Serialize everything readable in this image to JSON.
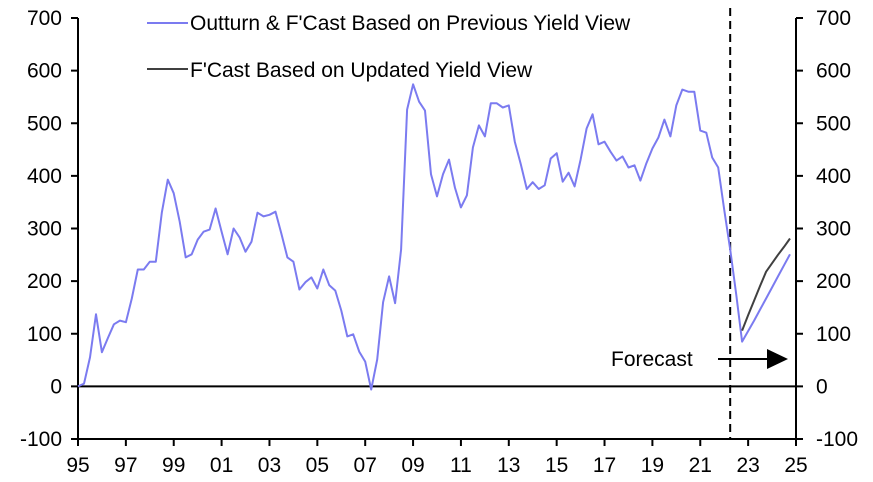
{
  "chart_data": {
    "type": "line",
    "title": "",
    "xlabel": "",
    "ylabel": "",
    "ylim": [
      -100,
      700
    ],
    "xlim": [
      1995,
      2025
    ],
    "y_ticks": [
      -100,
      0,
      100,
      200,
      300,
      400,
      500,
      600,
      700
    ],
    "y_tick_labels": [
      "-100",
      "0",
      "100",
      "200",
      "300",
      "400",
      "500",
      "600",
      "700"
    ],
    "x_ticks": [
      1995,
      1997,
      1999,
      2001,
      2003,
      2005,
      2007,
      2009,
      2011,
      2013,
      2015,
      2017,
      2019,
      2021,
      2023,
      2025
    ],
    "x_tick_labels": [
      "95",
      "97",
      "99",
      "01",
      "03",
      "05",
      "07",
      "09",
      "11",
      "13",
      "15",
      "17",
      "19",
      "21",
      "23",
      "25"
    ],
    "grid": false,
    "legend_placement": "top-left",
    "forecast_start": 2022.25,
    "annotation": "Forecast",
    "series": [
      {
        "name": "Outturn & F'Cast Based on Previous Yield View",
        "color": "#7b7bf0",
        "x_start": 1995.0,
        "x_step": 0.25,
        "values": [
          0,
          5,
          55,
          137,
          65,
          92,
          118,
          125,
          122,
          167,
          222,
          222,
          237,
          237,
          330,
          393,
          367,
          313,
          245,
          251,
          279,
          294,
          298,
          338,
          294,
          251,
          300,
          283,
          256,
          275,
          330,
          323,
          326,
          332,
          290,
          245,
          237,
          184,
          198,
          207,
          186,
          222,
          192,
          182,
          144,
          95,
          99,
          66,
          47,
          -6,
          51,
          160,
          209,
          158,
          260,
          526,
          574,
          541,
          524,
          403,
          361,
          403,
          431,
          378,
          340,
          363,
          454,
          496,
          475,
          538,
          538,
          530,
          534,
          465,
          422,
          375,
          388,
          375,
          382,
          433,
          443,
          389,
          406,
          380,
          431,
          490,
          517,
          460,
          465,
          446,
          429,
          437,
          416,
          420,
          391,
          424,
          452,
          473,
          507,
          475,
          534,
          564,
          560,
          560,
          486,
          482,
          435,
          416,
          336,
          260,
          175,
          85,
          105,
          125,
          146,
          167,
          188,
          209,
          230,
          251
        ]
      },
      {
        "name": "F'Cast Based on Updated Yield View",
        "color": "#404040",
        "x": [
          2022.75,
          2023.0,
          2023.25,
          2023.5,
          2023.75,
          2024.0,
          2024.25,
          2024.5,
          2024.75
        ],
        "values": [
          106,
          135,
          163,
          191,
          218,
          234,
          250,
          265,
          281
        ]
      }
    ]
  }
}
